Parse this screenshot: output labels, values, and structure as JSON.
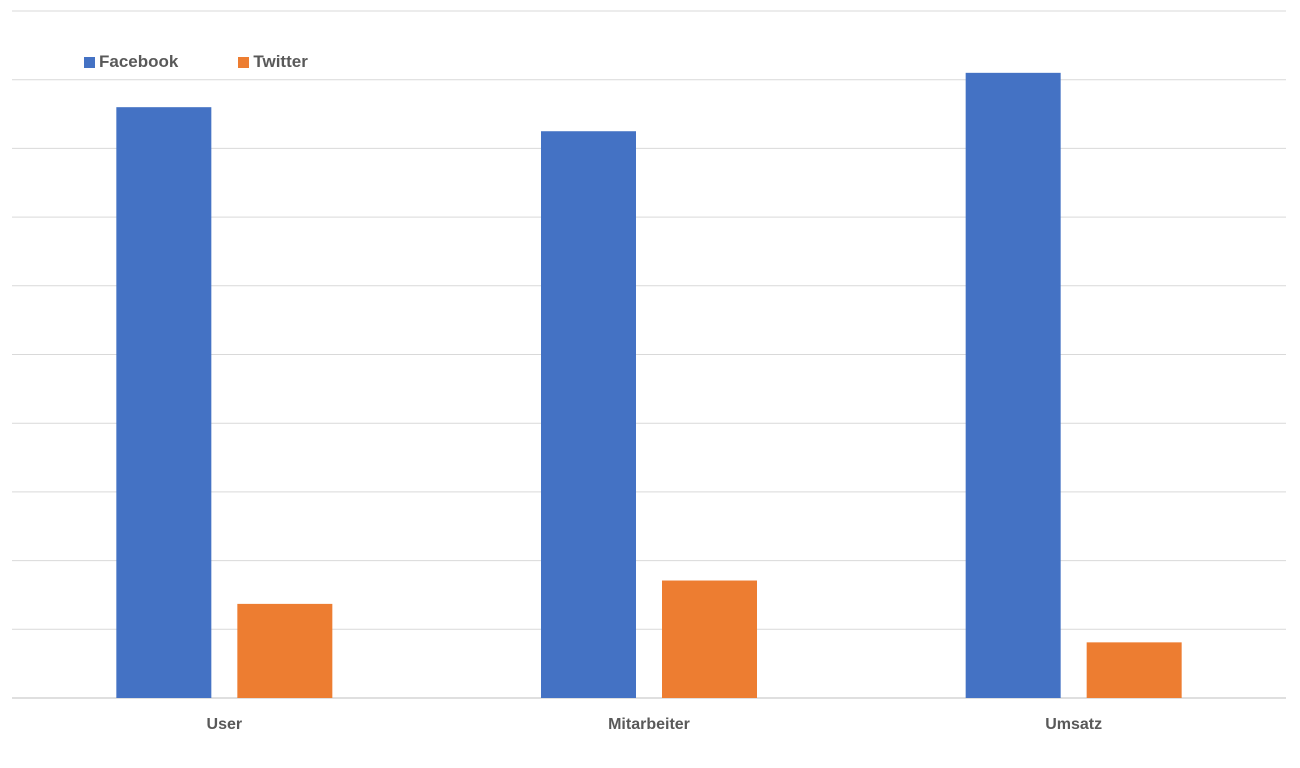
{
  "chart_data": {
    "type": "bar",
    "title": "",
    "xlabel": "",
    "ylabel": "",
    "categories": [
      "User",
      "Mitarbeiter",
      "Umsatz"
    ],
    "series": [
      {
        "name": "Facebook",
        "color": "#4472C4",
        "values": [
          8.6,
          8.25,
          9.1
        ]
      },
      {
        "name": "Twitter",
        "color": "#ED7D31",
        "values": [
          1.37,
          1.71,
          0.81
        ]
      }
    ],
    "ylim": [
      0,
      10
    ],
    "gridlines": true,
    "y_tick_labels_visible": false,
    "legend_position": "top-left"
  }
}
